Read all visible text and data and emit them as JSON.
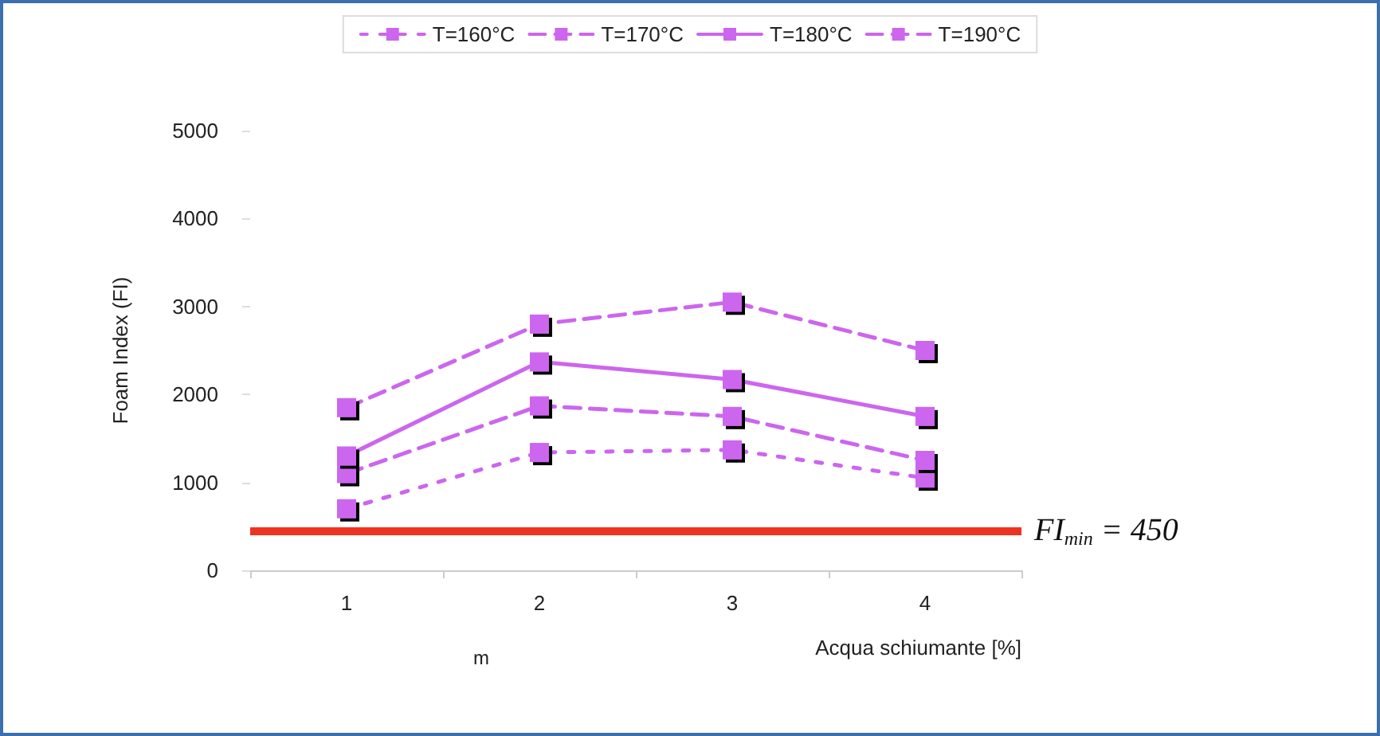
{
  "chart_data": {
    "type": "line",
    "xlabel": "Acqua schiumante [%]",
    "ylabel": "Foam Index (FI)",
    "categories": [
      "1",
      "2",
      "3",
      "4"
    ],
    "series": [
      {
        "name": "T=160°C",
        "color": "#cc66ee",
        "values": [
          700,
          1340,
          1370,
          1050
        ],
        "line_style": "dotted"
      },
      {
        "name": "T=170°C",
        "color": "#cc66ee",
        "values": [
          1100,
          1870,
          1750,
          1250
        ],
        "line_style": "dashed"
      },
      {
        "name": "T=180°C",
        "color": "#cc66ee",
        "values": [
          1300,
          2370,
          2170,
          1750
        ],
        "line_style": "solid"
      },
      {
        "name": "T=190°C",
        "color": "#cc66ee",
        "values": [
          1850,
          2800,
          3050,
          2500
        ],
        "line_style": "dashed"
      }
    ],
    "ylim": [
      0,
      5000
    ],
    "yticks": [
      0,
      1000,
      2000,
      3000,
      4000,
      5000
    ],
    "ref_lines": [
      {
        "axis": "y",
        "value": 450,
        "label": "FI$_{min}$ = 450",
        "color": "#ee3322"
      }
    ],
    "annotations": [
      "m"
    ],
    "marker": "square",
    "grid": false,
    "legend": "top"
  }
}
